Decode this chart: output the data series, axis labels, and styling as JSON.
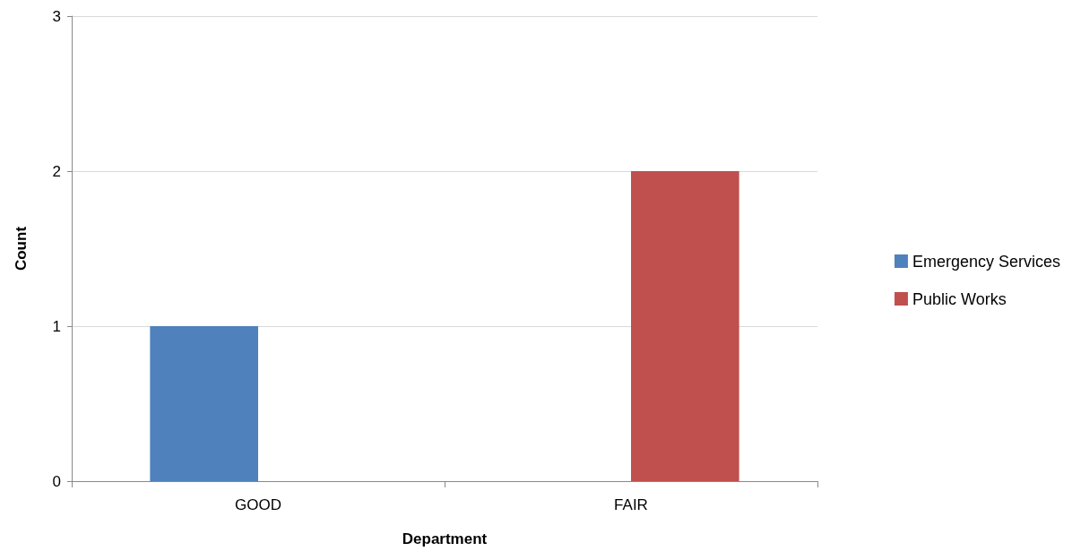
{
  "chart_data": {
    "type": "bar",
    "xlabel": "Department",
    "ylabel": "Count",
    "categories": [
      "GOOD",
      "FAIR"
    ],
    "series": [
      {
        "name": "Emergency Services",
        "color": "#4f81bd",
        "values": [
          1,
          null
        ]
      },
      {
        "name": "Public Works",
        "color": "#c0504d",
        "values": [
          null,
          2
        ]
      }
    ],
    "ylim": [
      0,
      3
    ],
    "yticks": [
      0,
      1,
      2,
      3
    ],
    "grid": "y",
    "legend": "right"
  }
}
